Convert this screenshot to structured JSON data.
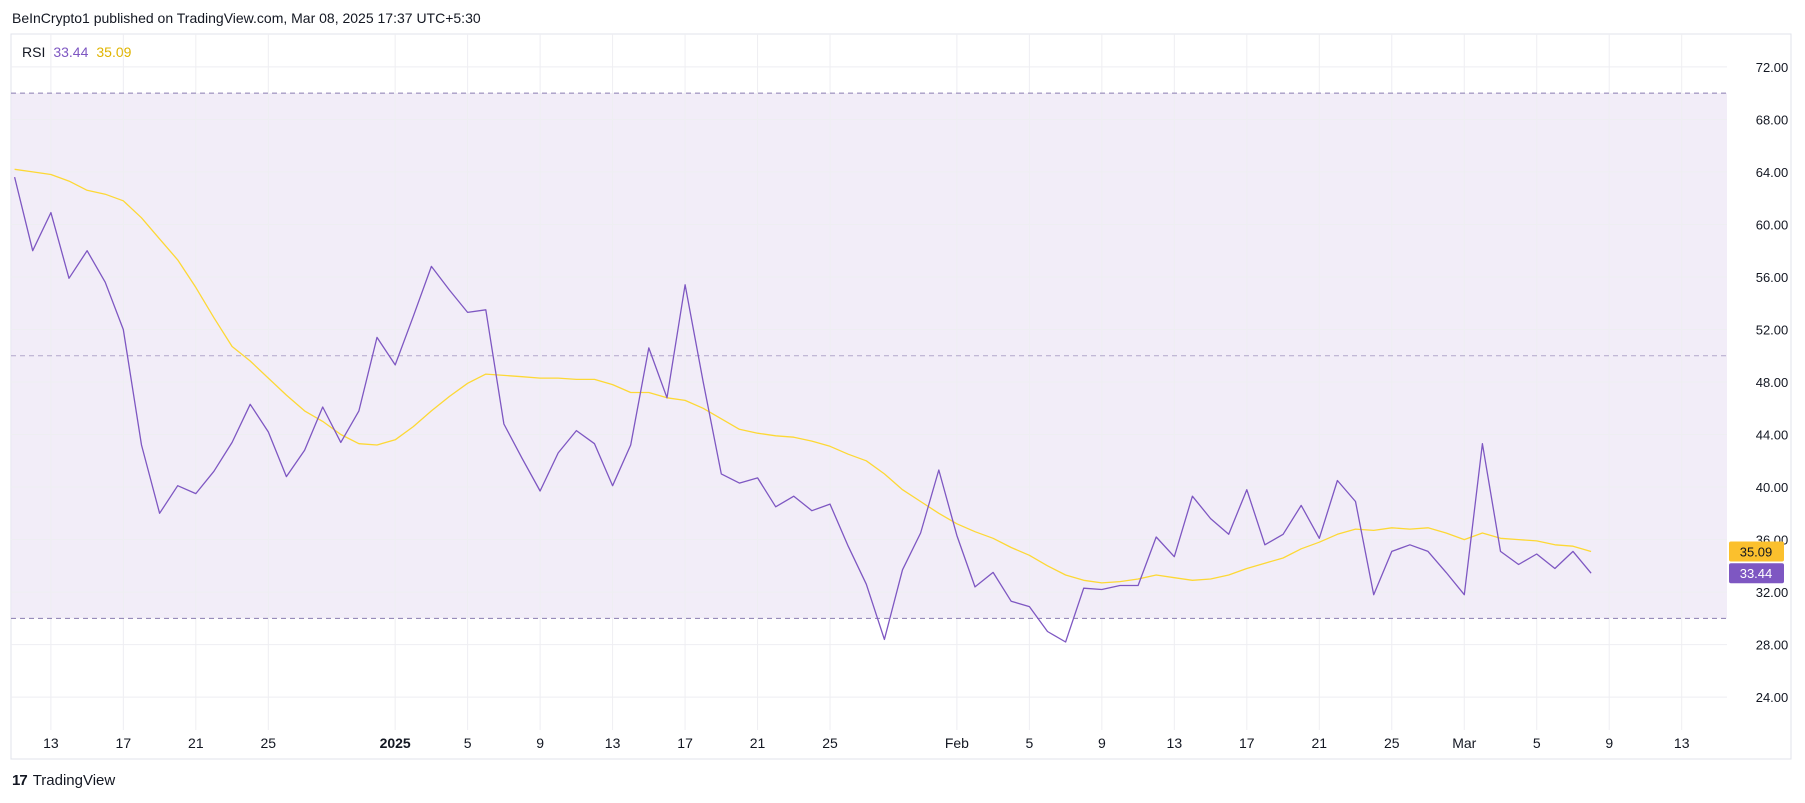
{
  "header": {
    "attribution": "BeInCrypto1 published on TradingView.com, Mar 08, 2025 17:37 UTC+5:30"
  },
  "legend": {
    "name": "RSI",
    "rsi_value": "33.44",
    "ma_value": "35.09"
  },
  "footer": {
    "brand": "TradingView",
    "logo_text": "17"
  },
  "colors": {
    "rsi": "#7e57c2",
    "ma": "#fdd835",
    "band": "#ede7f6",
    "grid": "#eeeef2",
    "axis_text": "#131722"
  },
  "chart_data": {
    "type": "line",
    "title": "RSI",
    "ylim": [
      21.5,
      74.5
    ],
    "y_ticks": [
      24,
      28,
      32,
      36,
      40,
      44,
      48,
      52,
      56,
      60,
      64,
      68,
      72
    ],
    "y_tick_labels": [
      "24.00",
      "28.00",
      "32.00",
      "36.00",
      "40.00",
      "44.00",
      "48.00",
      "52.00",
      "56.00",
      "60.00",
      "64.00",
      "68.00",
      "72.00"
    ],
    "x_ticks": [
      {
        "day": 2,
        "label": "13"
      },
      {
        "day": 6,
        "label": "17"
      },
      {
        "day": 10,
        "label": "21"
      },
      {
        "day": 14,
        "label": "25"
      },
      {
        "day": 21,
        "label": "2025"
      },
      {
        "day": 25,
        "label": "5"
      },
      {
        "day": 29,
        "label": "9"
      },
      {
        "day": 33,
        "label": "13"
      },
      {
        "day": 37,
        "label": "17"
      },
      {
        "day": 41,
        "label": "21"
      },
      {
        "day": 45,
        "label": "25"
      },
      {
        "day": 52,
        "label": "Feb"
      },
      {
        "day": 56,
        "label": "5"
      },
      {
        "day": 60,
        "label": "9"
      },
      {
        "day": 64,
        "label": "13"
      },
      {
        "day": 68,
        "label": "17"
      },
      {
        "day": 72,
        "label": "21"
      },
      {
        "day": 76,
        "label": "25"
      },
      {
        "day": 80,
        "label": "Mar"
      },
      {
        "day": 84,
        "label": "5"
      },
      {
        "day": 88,
        "label": "9"
      },
      {
        "day": 92,
        "label": "13"
      }
    ],
    "x_range": [
      -0.2,
      94.5
    ],
    "band": {
      "upper": 70,
      "lower": 30,
      "middle": 50
    },
    "series": [
      {
        "name": "RSI",
        "values": [
          63.6,
          58.0,
          60.9,
          55.9,
          58.0,
          55.6,
          52.0,
          43.2,
          38.0,
          40.1,
          39.5,
          41.2,
          43.4,
          46.3,
          44.2,
          40.8,
          42.8,
          46.1,
          43.4,
          45.8,
          51.4,
          49.3,
          53.0,
          56.8,
          55.0,
          53.3,
          53.5,
          44.8,
          42.2,
          39.7,
          42.6,
          44.3,
          43.3,
          40.1,
          43.2,
          50.6,
          46.8,
          55.4,
          48.0,
          41.0,
          40.3,
          40.7,
          38.5,
          39.3,
          38.2,
          38.7,
          35.5,
          32.6,
          28.4,
          33.7,
          36.5,
          41.3,
          36.3,
          32.4,
          33.5,
          31.3,
          30.9,
          29.0,
          28.2,
          32.3,
          32.2,
          32.5,
          32.5,
          36.2,
          34.7,
          39.3,
          37.6,
          36.4,
          39.8,
          35.6,
          36.4,
          38.6,
          36.1,
          40.5,
          38.9,
          31.8,
          35.1,
          35.6,
          35.1,
          33.5,
          31.8,
          43.3,
          35.1,
          34.1,
          34.9,
          33.8,
          35.1,
          33.44
        ]
      },
      {
        "name": "MA",
        "values": [
          64.2,
          64.0,
          63.8,
          63.3,
          62.6,
          62.3,
          61.8,
          60.5,
          58.9,
          57.3,
          55.2,
          52.9,
          50.7,
          49.6,
          48.3,
          47.0,
          45.8,
          45.0,
          44.0,
          43.3,
          43.2,
          43.6,
          44.6,
          45.8,
          46.9,
          47.9,
          48.6,
          48.5,
          48.4,
          48.3,
          48.3,
          48.2,
          48.2,
          47.8,
          47.2,
          47.2,
          46.8,
          46.6,
          46.0,
          45.2,
          44.4,
          44.1,
          43.9,
          43.8,
          43.5,
          43.1,
          42.5,
          42.0,
          41.0,
          39.8,
          38.9,
          38.0,
          37.2,
          36.6,
          36.1,
          35.4,
          34.8,
          34.0,
          33.3,
          32.9,
          32.7,
          32.8,
          33.0,
          33.3,
          33.1,
          32.9,
          33.0,
          33.3,
          33.8,
          34.2,
          34.6,
          35.3,
          35.8,
          36.4,
          36.8,
          36.7,
          36.9,
          36.8,
          36.9,
          36.5,
          36.0,
          36.5,
          36.1,
          36.0,
          35.9,
          35.6,
          35.5,
          35.09
        ]
      }
    ]
  }
}
